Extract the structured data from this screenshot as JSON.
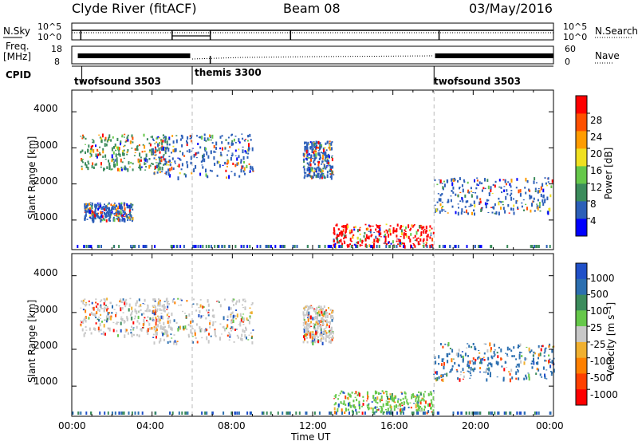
{
  "header": {
    "station": "Clyde River (fitACF)",
    "beam": "Beam 08",
    "date": "03/May/2016"
  },
  "status_panels": {
    "nsky_label": "N.Sky",
    "nsky_ticks": [
      "10^5",
      "10^0"
    ],
    "nsearch_label": "N.Search",
    "nsearch_ticks": [
      "10^5",
      "10^0"
    ],
    "freq_label": "Freq.",
    "freq_unit": "[MHz]",
    "freq_ticks": [
      "18",
      "8"
    ],
    "nave_label": "Nave",
    "nave_ticks": [
      "60",
      "0"
    ],
    "cpid_label": "CPID",
    "cpid_segments": [
      {
        "name": "twofsound 3503",
        "start_h": 0.5,
        "end_h": 6.0
      },
      {
        "name": "themis 3300",
        "start_h": 6.0,
        "end_h": 18.05
      },
      {
        "name": "twofsound 3503",
        "start_h": 18.05,
        "end_h": 24.0
      }
    ]
  },
  "chart_data": [
    {
      "type": "heatmap",
      "name": "power",
      "ylabel": "Slant Range [km]",
      "xlabel": "",
      "xlim": [
        0,
        24
      ],
      "ylim": [
        180,
        4600
      ],
      "yticks": [
        "1000",
        "2000",
        "3000",
        "4000"
      ],
      "colorbar_label": "Power [dB]",
      "colorbar_ticks": [
        "4",
        "8",
        "12",
        "16",
        "20",
        "24",
        "28"
      ],
      "colorbar_colors": [
        "#0000ff",
        "#2c5fb8",
        "#3c8c5c",
        "#66c84a",
        "#f0e020",
        "#ff9c00",
        "#ff5000",
        "#ff0000"
      ],
      "scatter_regions": [
        {
          "t0": 0.4,
          "t1": 4.8,
          "r0": 2400,
          "r1": 3400,
          "dominant": "#3c8c5c"
        },
        {
          "t0": 0.6,
          "t1": 3.0,
          "r0": 1000,
          "r1": 1500,
          "dominant": "#2c5fb8"
        },
        {
          "t0": 4.0,
          "t1": 9.0,
          "r0": 2200,
          "r1": 3400,
          "dominant": "#2c5fb8"
        },
        {
          "t0": 11.5,
          "t1": 13.0,
          "r0": 2200,
          "r1": 3200,
          "dominant": "#2c5fb8"
        },
        {
          "t0": 13.0,
          "t1": 18.0,
          "r0": 300,
          "r1": 900,
          "dominant": "#ff0000"
        },
        {
          "t0": 18.0,
          "t1": 24.0,
          "r0": 1200,
          "r1": 2200,
          "dominant": "#2c5fb8"
        }
      ]
    },
    {
      "type": "heatmap",
      "name": "velocity",
      "ylabel": "Slant Range [km]",
      "xlabel": "Time UT",
      "xlim": [
        0,
        24
      ],
      "xticks": [
        "00:00",
        "04:00",
        "08:00",
        "12:00",
        "16:00",
        "20:00",
        "00:00"
      ],
      "ylim": [
        180,
        4600
      ],
      "yticks": [
        "1000",
        "2000",
        "3000",
        "4000"
      ],
      "colorbar_label": "Velocity [m s⁻¹]",
      "colorbar_ticks": [
        "1000",
        "500",
        "100",
        "25",
        "-25",
        "-100",
        "-500",
        "-1000"
      ],
      "colorbar_colors": [
        "#2050c8",
        "#2c6fb0",
        "#3c8c5c",
        "#66c84a",
        "#c8c8c8",
        "#f0b030",
        "#ff8000",
        "#ff4000",
        "#ff0000"
      ],
      "scatter_regions": [
        {
          "t0": 0.4,
          "t1": 4.8,
          "r0": 2400,
          "r1": 3400,
          "dominant": "#c8c8c8"
        },
        {
          "t0": 4.0,
          "t1": 9.0,
          "r0": 2200,
          "r1": 3400,
          "dominant": "#c8c8c8"
        },
        {
          "t0": 11.5,
          "t1": 13.0,
          "r0": 2200,
          "r1": 3200,
          "dominant": "#c8c8c8"
        },
        {
          "t0": 13.0,
          "t1": 18.0,
          "r0": 300,
          "r1": 900,
          "dominant": "#66c84a"
        },
        {
          "t0": 18.0,
          "t1": 24.0,
          "r0": 1200,
          "r1": 2200,
          "dominant": "#2c6fb0"
        }
      ]
    }
  ]
}
